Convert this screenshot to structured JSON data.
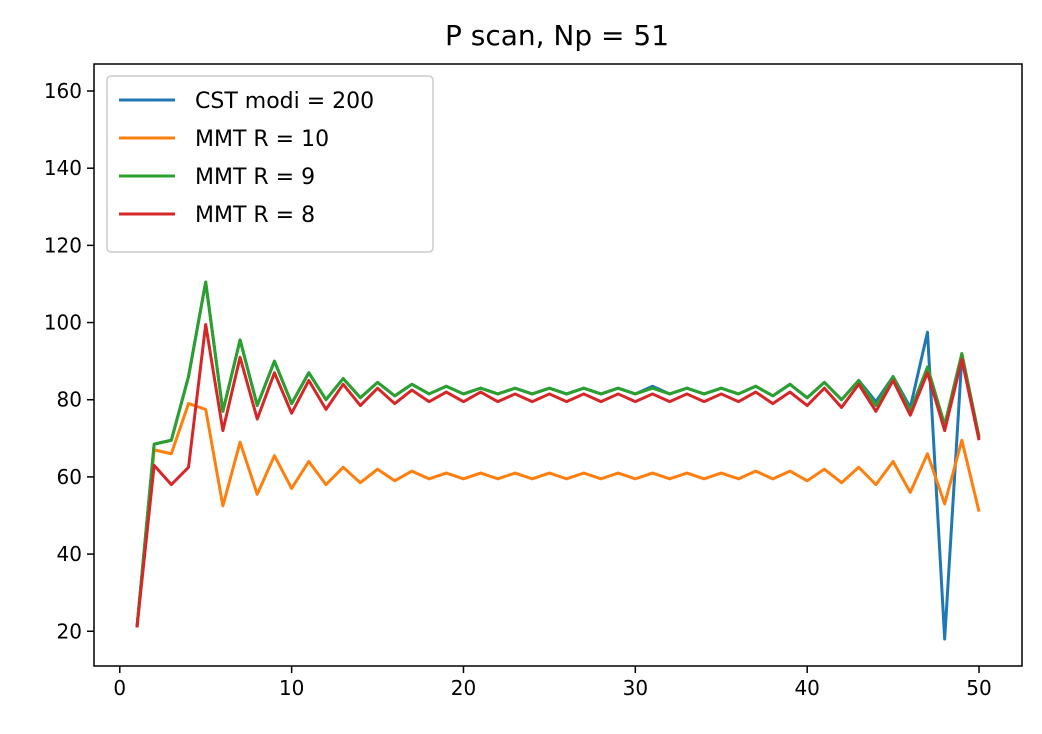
{
  "chart_data": {
    "type": "line",
    "title": "P scan, Np = 51",
    "xlabel": "",
    "ylabel": "",
    "xlim": [
      -1.5,
      52.5
    ],
    "ylim": [
      11,
      167
    ],
    "xticks": [
      0,
      10,
      20,
      30,
      40,
      50
    ],
    "yticks": [
      20,
      40,
      60,
      80,
      100,
      120,
      140,
      160
    ],
    "grid": false,
    "legend_position": "top-left",
    "x": [
      1,
      2,
      3,
      4,
      5,
      6,
      7,
      8,
      9,
      10,
      11,
      12,
      13,
      14,
      15,
      16,
      17,
      18,
      19,
      20,
      21,
      22,
      23,
      24,
      25,
      26,
      27,
      28,
      29,
      30,
      31,
      32,
      33,
      34,
      35,
      36,
      37,
      38,
      39,
      40,
      41,
      42,
      43,
      44,
      45,
      46,
      47,
      48,
      49,
      50
    ],
    "series": [
      {
        "name": "CST modi = 200",
        "color": "#1f77b4",
        "values": [
          21,
          68.5,
          69.5,
          86,
          110.5,
          77,
          95.5,
          78.5,
          90,
          79,
          87,
          80,
          85.5,
          80.5,
          84.5,
          81,
          84,
          81.5,
          83.5,
          81.5,
          83,
          81.5,
          83,
          81.5,
          83,
          81.5,
          83,
          81.5,
          83,
          81.5,
          83.5,
          81.5,
          83,
          81.5,
          83,
          81.5,
          83.5,
          81,
          84,
          80.5,
          84.5,
          80,
          85,
          79.5,
          86,
          78,
          97.5,
          18,
          91,
          70
        ]
      },
      {
        "name": "MMT R = 10",
        "color": "#ff7f0e",
        "values": [
          21,
          67,
          66,
          79,
          77.5,
          52.5,
          69,
          55.5,
          65.5,
          57,
          64,
          58,
          62.5,
          58.5,
          62,
          59,
          61.5,
          59.5,
          61,
          59.5,
          61,
          59.5,
          61,
          59.5,
          61,
          59.5,
          61,
          59.5,
          61,
          59.5,
          61,
          59.5,
          61,
          59.5,
          61,
          59.5,
          61.5,
          59.5,
          61.5,
          59,
          62,
          58.5,
          62.5,
          58,
          64,
          56,
          66,
          53,
          69.5,
          51
        ]
      },
      {
        "name": "MMT R = 9",
        "color": "#2ca02c",
        "values": [
          21,
          68.5,
          69.5,
          86,
          110.5,
          77,
          95.5,
          78.5,
          90,
          79,
          87,
          80,
          85.5,
          80.5,
          84.5,
          81,
          84,
          81.5,
          83.5,
          81.5,
          83,
          81.5,
          83,
          81.5,
          83,
          81.5,
          83,
          81.5,
          83,
          81.5,
          83,
          81.5,
          83,
          81.5,
          83,
          81.5,
          83.5,
          81,
          84,
          80.5,
          84.5,
          80,
          85,
          78.5,
          86,
          77,
          88.5,
          73.5,
          92,
          70.5
        ]
      },
      {
        "name": "MMT R = 8",
        "color": "#d62728",
        "values": [
          21,
          63,
          58,
          62.5,
          99.5,
          72,
          91,
          75,
          87,
          76.5,
          85,
          77.5,
          84,
          78.5,
          83,
          79,
          82.5,
          79.5,
          82,
          79.5,
          82,
          79.5,
          81.5,
          79.5,
          81.5,
          79.5,
          81.5,
          79.5,
          81.5,
          79.5,
          81.5,
          79.5,
          81.5,
          79.5,
          81.5,
          79.5,
          82,
          79,
          82,
          78.5,
          83,
          78,
          84,
          77,
          85,
          76,
          87,
          72,
          90.5,
          69.5
        ]
      }
    ]
  }
}
